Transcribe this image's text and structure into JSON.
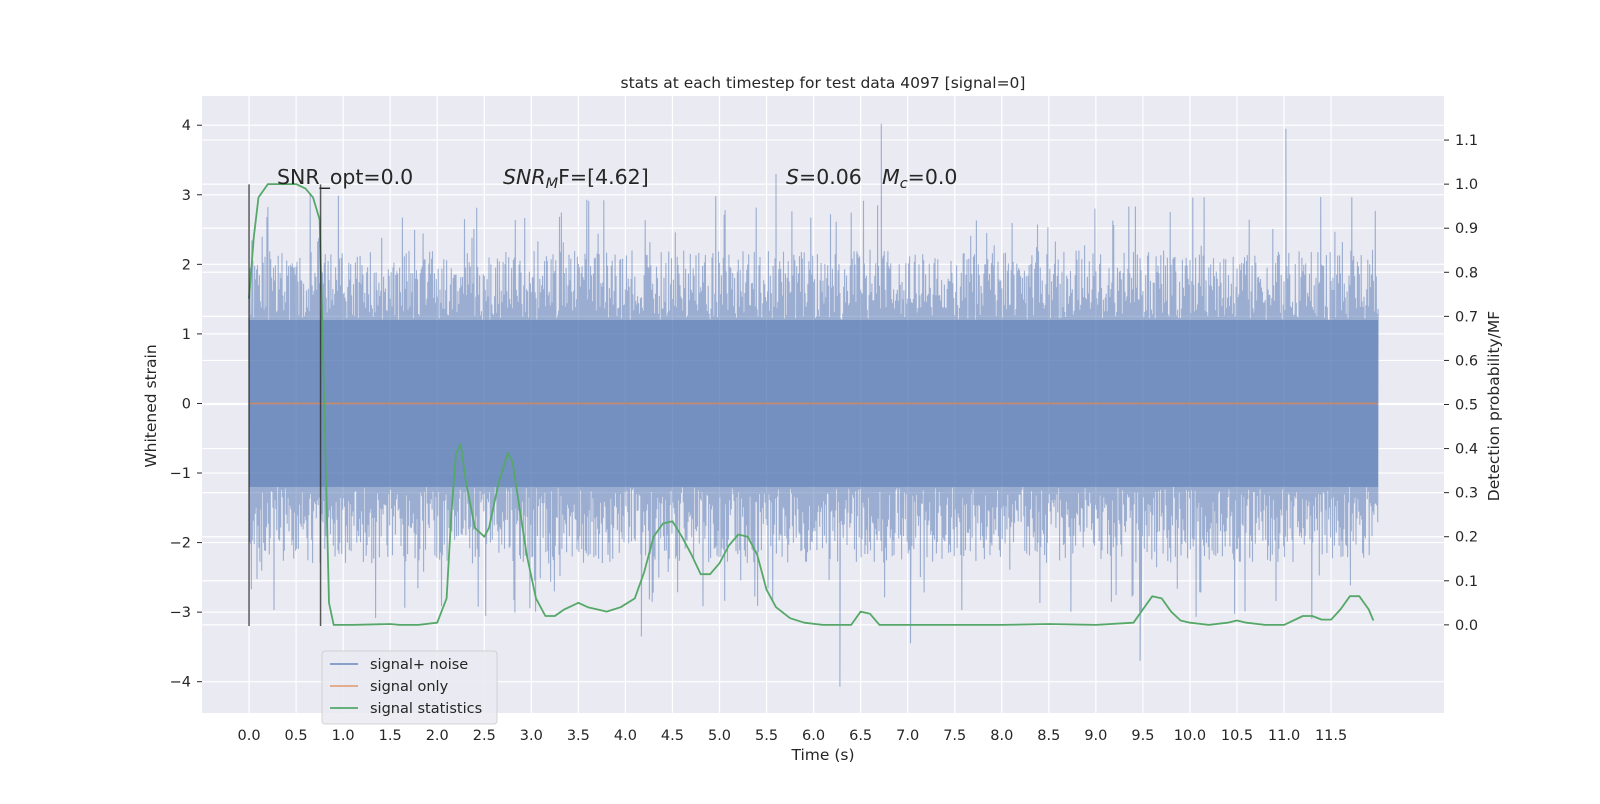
{
  "chart_data": {
    "type": "line",
    "title": "stats at each timestep for test data 4097 [signal=0]",
    "xlabel": "Time (s)",
    "ylabel": "Whitened strain",
    "y2label": "Detection probability/MF",
    "xlim": [
      -0.5,
      12.7
    ],
    "ylim": [
      -4.45,
      4.42
    ],
    "y2lim": [
      -0.2,
      1.2
    ],
    "grid": true,
    "legend_position": "lower-left",
    "xticks": [
      0.0,
      0.5,
      1.0,
      1.5,
      2.0,
      2.5,
      3.0,
      3.5,
      4.0,
      4.5,
      5.0,
      5.5,
      6.0,
      6.5,
      7.0,
      7.5,
      8.0,
      8.5,
      9.0,
      9.5,
      10.0,
      10.5,
      11.0,
      11.5
    ],
    "xtick_labels": [
      "0.0",
      "0.5",
      "1.0",
      "1.5",
      "2.0",
      "2.5",
      "3.0",
      "3.5",
      "4.0",
      "4.5",
      "5.0",
      "5.5",
      "6.0",
      "6.5",
      "7.0",
      "7.5",
      "8.0",
      "8.5",
      "9.0",
      "9.5",
      "10.0",
      "10.5",
      "11.0",
      "11.5"
    ],
    "yticks": [
      4,
      3,
      2,
      1,
      0,
      -1,
      -2,
      -3,
      -4
    ],
    "ytick_labels": [
      "4",
      "3",
      "2",
      "1",
      "0",
      "−1",
      "−2",
      "−3",
      "−4"
    ],
    "y2ticks": [
      1.1,
      1.0,
      0.9,
      0.8,
      0.7,
      0.6,
      0.5,
      0.4,
      0.3,
      0.2,
      0.1,
      0.0
    ],
    "y2tick_labels": [
      "1.1",
      "1.0",
      "0.9",
      "0.8",
      "0.7",
      "0.6",
      "0.5",
      "0.4",
      "0.3",
      "0.2",
      "0.1",
      "0.0"
    ],
    "annotations": {
      "snr_opt": "SNR_opt=0.0",
      "snr_mf_main": "SNR",
      "snr_mf_sub": "M",
      "snr_mf_rest": "F=[4.62]",
      "s_label": "S",
      "s_value": "=0.06",
      "mc_main": "M",
      "mc_sub": "c",
      "mc_value": "=0.0"
    },
    "window_markers": [
      {
        "x": 0.0,
        "y_range": [
          -3.2,
          3.15
        ]
      },
      {
        "x": 0.76,
        "y_range": [
          -3.2,
          3.15
        ]
      }
    ],
    "series": [
      {
        "name": "signal+ noise",
        "color": "#4c72b0",
        "opacity": 0.5,
        "axis": "left",
        "t_range": [
          0.0,
          12.0
        ],
        "envelope": {
          "typical_upper": 2.2,
          "typical_lower": -2.3,
          "max": 4.02,
          "min": -4.07
        },
        "spikes": [
          {
            "t": 6.72,
            "y": 4.02
          },
          {
            "t": 11.02,
            "y": 3.95
          },
          {
            "t": 6.28,
            "y": -4.07
          },
          {
            "t": 9.47,
            "y": -3.7
          },
          {
            "t": 5.6,
            "y": 3.3
          },
          {
            "t": 7.03,
            "y": -3.45
          },
          {
            "t": 4.17,
            "y": -3.35
          }
        ]
      },
      {
        "name": "signal only",
        "color": "#dd8452",
        "axis": "left",
        "x": [
          0.0,
          12.0
        ],
        "y": [
          0.0,
          0.0
        ]
      },
      {
        "name": "signal statistics",
        "color": "#55a868",
        "axis": "right",
        "x": [
          0.0,
          0.05,
          0.1,
          0.2,
          0.35,
          0.5,
          0.6,
          0.68,
          0.75,
          0.8,
          0.85,
          0.9,
          0.95,
          1.1,
          1.5,
          1.6,
          1.8,
          2.0,
          2.1,
          2.15,
          2.2,
          2.25,
          2.3,
          2.4,
          2.5,
          2.55,
          2.65,
          2.75,
          2.8,
          2.85,
          2.95,
          3.05,
          3.15,
          3.25,
          3.35,
          3.5,
          3.6,
          3.7,
          3.8,
          3.95,
          4.1,
          4.2,
          4.3,
          4.4,
          4.5,
          4.6,
          4.7,
          4.8,
          4.9,
          5.0,
          5.1,
          5.2,
          5.3,
          5.4,
          5.5,
          5.6,
          5.75,
          5.9,
          6.1,
          6.4,
          6.5,
          6.6,
          6.7,
          6.8,
          7.0,
          7.5,
          8.0,
          8.5,
          9.0,
          9.4,
          9.5,
          9.6,
          9.7,
          9.8,
          9.9,
          10.0,
          10.2,
          10.4,
          10.5,
          10.6,
          10.8,
          11.0,
          11.2,
          11.3,
          11.4,
          11.5,
          11.6,
          11.7,
          11.8,
          11.9,
          11.95
        ],
        "y": [
          0.74,
          0.88,
          0.97,
          1.0,
          1.0,
          1.0,
          0.99,
          0.97,
          0.92,
          0.5,
          0.05,
          0.0,
          0.0,
          0.0,
          0.002,
          0.0,
          0.0,
          0.005,
          0.06,
          0.25,
          0.39,
          0.41,
          0.33,
          0.22,
          0.2,
          0.22,
          0.32,
          0.39,
          0.37,
          0.3,
          0.16,
          0.06,
          0.02,
          0.02,
          0.035,
          0.05,
          0.04,
          0.035,
          0.03,
          0.04,
          0.06,
          0.12,
          0.2,
          0.23,
          0.235,
          0.2,
          0.16,
          0.115,
          0.115,
          0.14,
          0.18,
          0.205,
          0.2,
          0.16,
          0.08,
          0.04,
          0.015,
          0.005,
          0.0,
          0.0,
          0.03,
          0.025,
          0.0,
          0.0,
          0.0,
          0.0,
          0.0,
          0.002,
          0.0,
          0.005,
          0.035,
          0.065,
          0.06,
          0.03,
          0.01,
          0.005,
          0.0,
          0.005,
          0.01,
          0.005,
          0.0,
          0.0,
          0.02,
          0.02,
          0.012,
          0.012,
          0.035,
          0.065,
          0.065,
          0.035,
          0.01
        ]
      }
    ]
  }
}
